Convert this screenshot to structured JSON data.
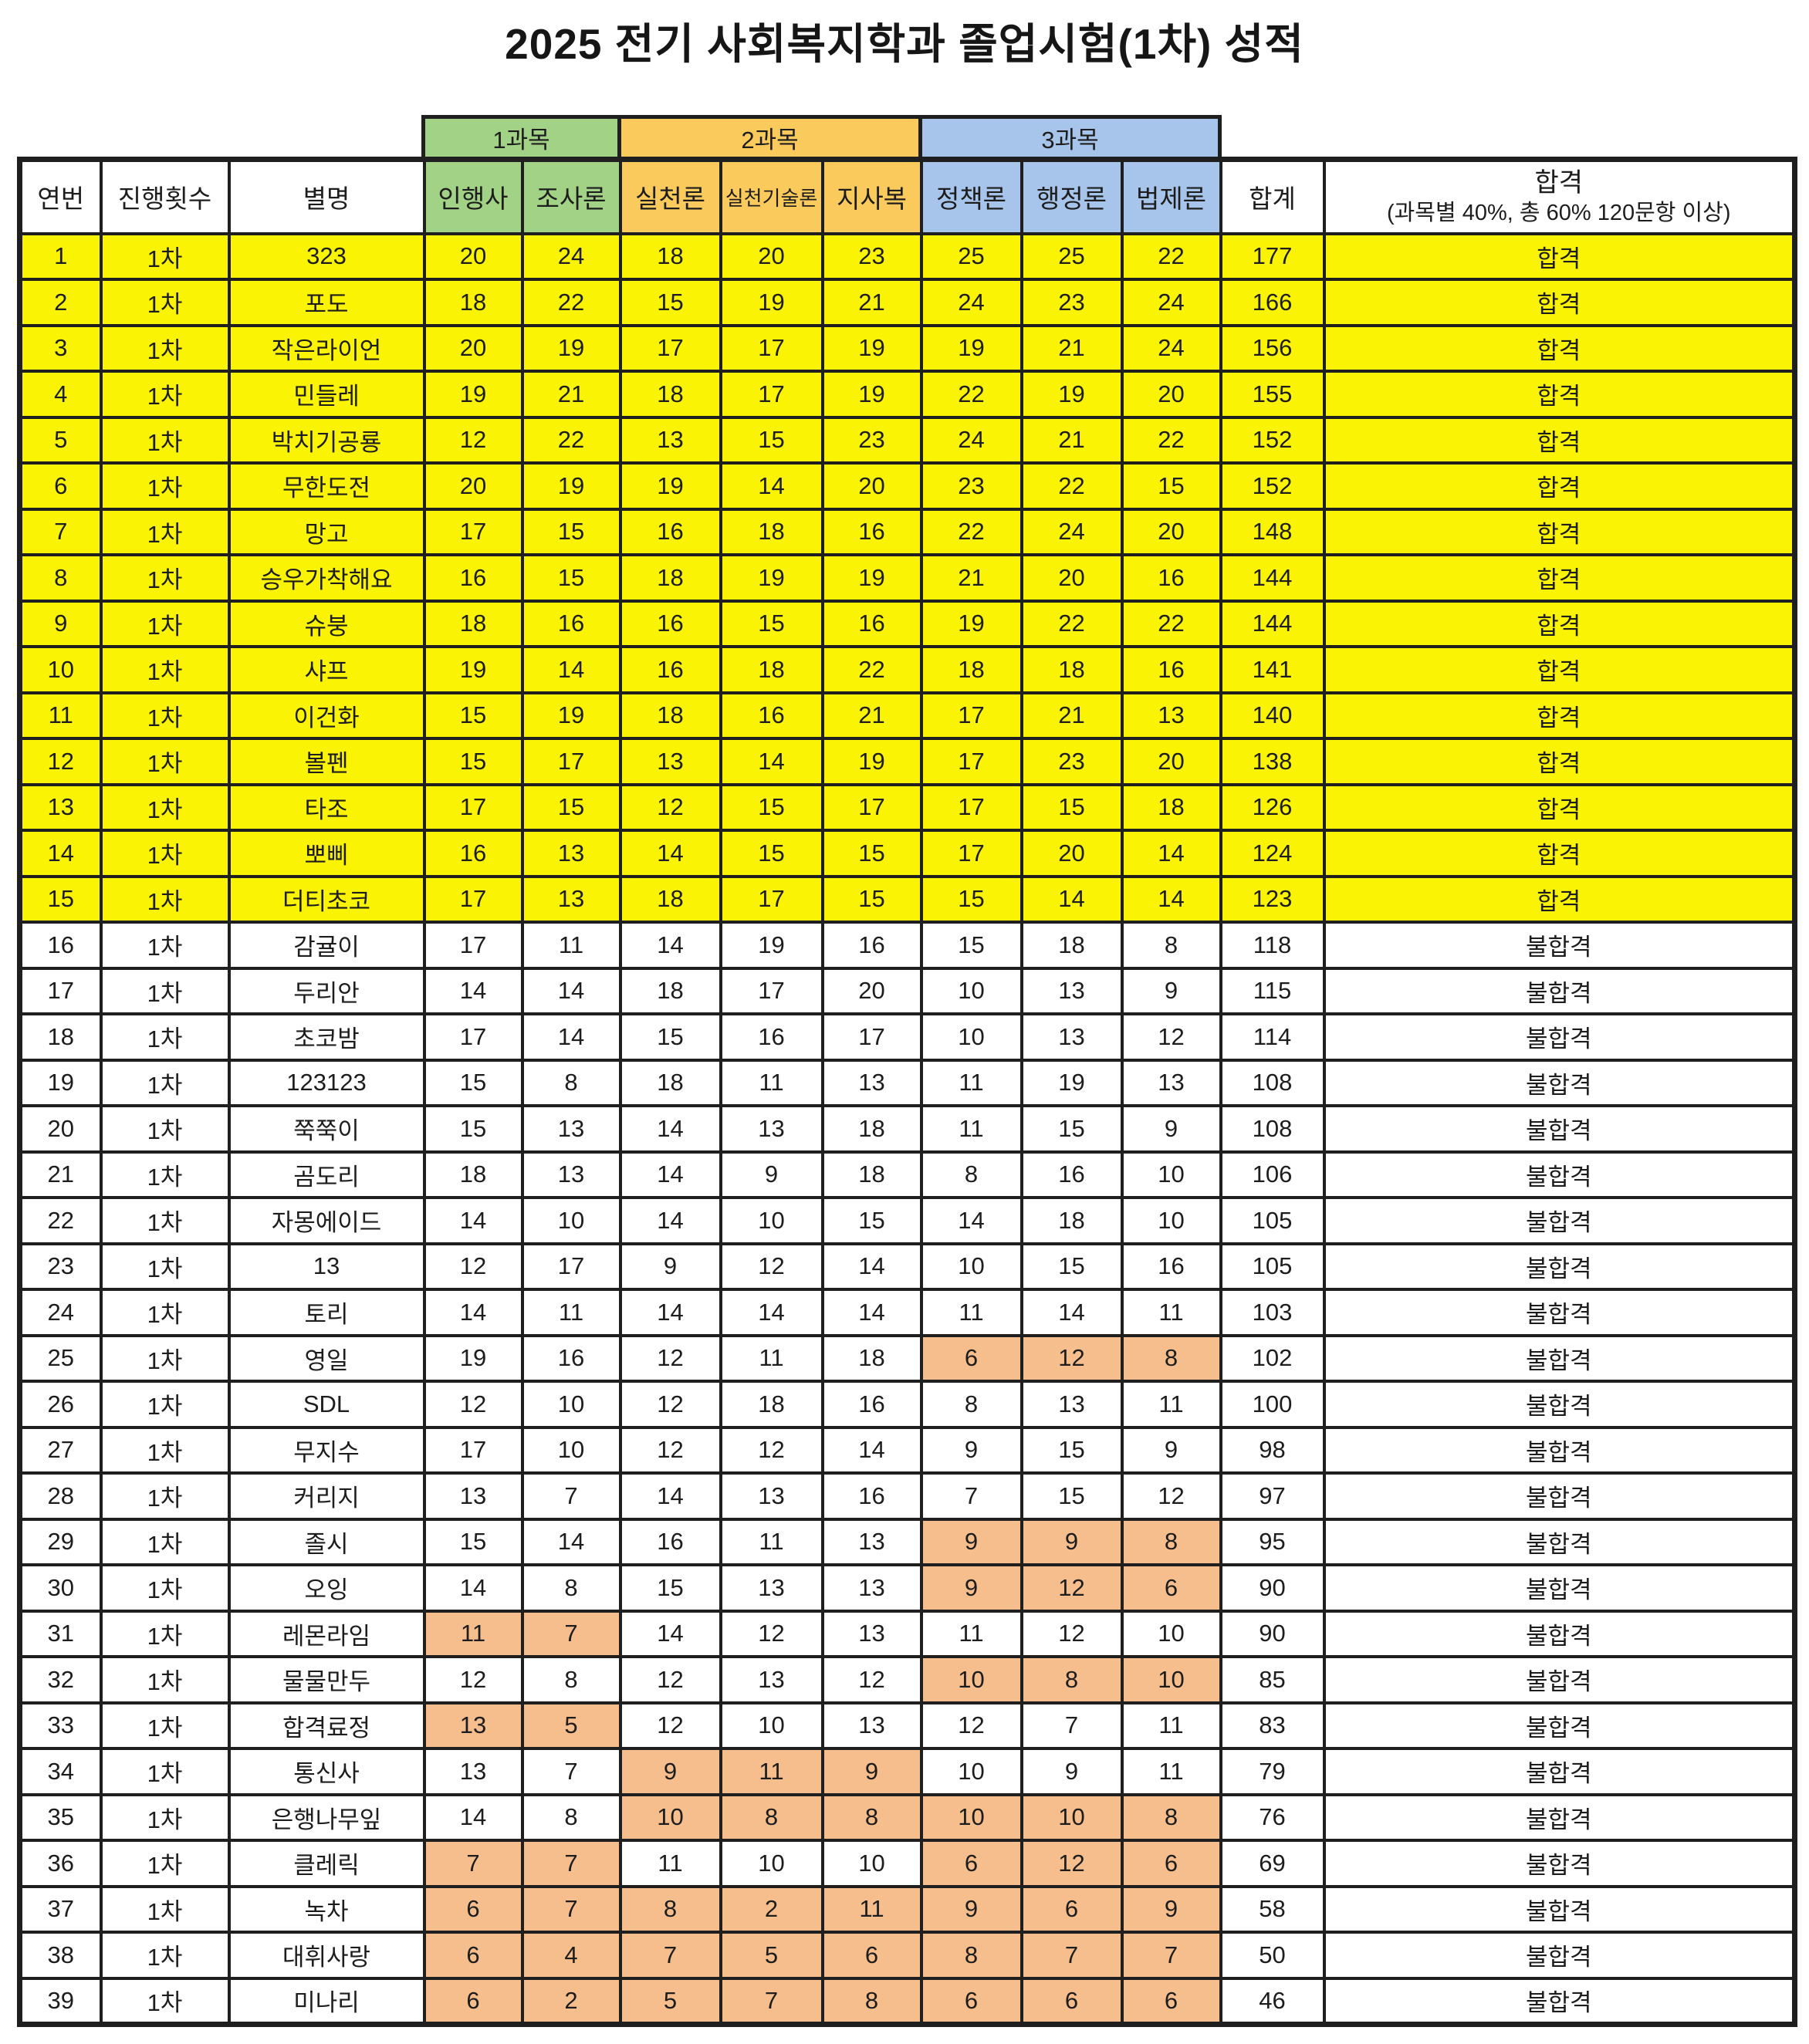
{
  "title": "2025 전기 사회복지학과 졸업시험(1차) 성적",
  "colors": {
    "pass_row_yellow": "#FAF303",
    "subject1_green": "#A2D286",
    "subject2_gold": "#FBCA5D",
    "subject3_blue": "#A7C5EA",
    "low_score_orange": "#F6BE8D",
    "grid_line": "#1f1f1f"
  },
  "table": {
    "group_headers": [
      {
        "label": "1과목",
        "span": 2
      },
      {
        "label": "2과목",
        "span": 3
      },
      {
        "label": "3과목",
        "span": 3
      }
    ],
    "columns": [
      "연번",
      "진행횟수",
      "별명",
      "인행사",
      "조사론",
      "실천론",
      "실천기술론",
      "지사복",
      "정책론",
      "행정론",
      "법제론",
      "합계"
    ],
    "pass_header": {
      "line1": "합격",
      "line2": "(과목별 40%, 총 60% 120문항 이상)"
    },
    "rows": [
      {
        "no": 1,
        "round": "1차",
        "name": "323",
        "scores": [
          20,
          24,
          18,
          20,
          23,
          25,
          25,
          22
        ],
        "total": 177,
        "result": "합격",
        "low": []
      },
      {
        "no": 2,
        "round": "1차",
        "name": "포도",
        "scores": [
          18,
          22,
          15,
          19,
          21,
          24,
          23,
          24
        ],
        "total": 166,
        "result": "합격",
        "low": []
      },
      {
        "no": 3,
        "round": "1차",
        "name": "작은라이언",
        "scores": [
          20,
          19,
          17,
          17,
          19,
          19,
          21,
          24
        ],
        "total": 156,
        "result": "합격",
        "low": []
      },
      {
        "no": 4,
        "round": "1차",
        "name": "민들레",
        "scores": [
          19,
          21,
          18,
          17,
          19,
          22,
          19,
          20
        ],
        "total": 155,
        "result": "합격",
        "low": []
      },
      {
        "no": 5,
        "round": "1차",
        "name": "박치기공룡",
        "scores": [
          12,
          22,
          13,
          15,
          23,
          24,
          21,
          22
        ],
        "total": 152,
        "result": "합격",
        "low": []
      },
      {
        "no": 6,
        "round": "1차",
        "name": "무한도전",
        "scores": [
          20,
          19,
          19,
          14,
          20,
          23,
          22,
          15
        ],
        "total": 152,
        "result": "합격",
        "low": []
      },
      {
        "no": 7,
        "round": "1차",
        "name": "망고",
        "scores": [
          17,
          15,
          16,
          18,
          16,
          22,
          24,
          20
        ],
        "total": 148,
        "result": "합격",
        "low": []
      },
      {
        "no": 8,
        "round": "1차",
        "name": "승우가착해요",
        "scores": [
          16,
          15,
          18,
          19,
          19,
          21,
          20,
          16
        ],
        "total": 144,
        "result": "합격",
        "low": []
      },
      {
        "no": 9,
        "round": "1차",
        "name": "슈붕",
        "scores": [
          18,
          16,
          16,
          15,
          16,
          19,
          22,
          22
        ],
        "total": 144,
        "result": "합격",
        "low": []
      },
      {
        "no": 10,
        "round": "1차",
        "name": "샤프",
        "scores": [
          19,
          14,
          16,
          18,
          22,
          18,
          18,
          16
        ],
        "total": 141,
        "result": "합격",
        "low": []
      },
      {
        "no": 11,
        "round": "1차",
        "name": "이건화",
        "scores": [
          15,
          19,
          18,
          16,
          21,
          17,
          21,
          13
        ],
        "total": 140,
        "result": "합격",
        "low": []
      },
      {
        "no": 12,
        "round": "1차",
        "name": "볼펜",
        "scores": [
          15,
          17,
          13,
          14,
          19,
          17,
          23,
          20
        ],
        "total": 138,
        "result": "합격",
        "low": []
      },
      {
        "no": 13,
        "round": "1차",
        "name": "타조",
        "scores": [
          17,
          15,
          12,
          15,
          17,
          17,
          15,
          18
        ],
        "total": 126,
        "result": "합격",
        "low": []
      },
      {
        "no": 14,
        "round": "1차",
        "name": "뽀삐",
        "scores": [
          16,
          13,
          14,
          15,
          15,
          17,
          20,
          14
        ],
        "total": 124,
        "result": "합격",
        "low": []
      },
      {
        "no": 15,
        "round": "1차",
        "name": "더티초코",
        "scores": [
          17,
          13,
          18,
          17,
          15,
          15,
          14,
          14
        ],
        "total": 123,
        "result": "합격",
        "low": []
      },
      {
        "no": 16,
        "round": "1차",
        "name": "감귤이",
        "scores": [
          17,
          11,
          14,
          19,
          16,
          15,
          18,
          8
        ],
        "total": 118,
        "result": "불합격",
        "low": []
      },
      {
        "no": 17,
        "round": "1차",
        "name": "두리안",
        "scores": [
          14,
          14,
          18,
          17,
          20,
          10,
          13,
          9
        ],
        "total": 115,
        "result": "불합격",
        "low": []
      },
      {
        "no": 18,
        "round": "1차",
        "name": "초코밤",
        "scores": [
          17,
          14,
          15,
          16,
          17,
          10,
          13,
          12
        ],
        "total": 114,
        "result": "불합격",
        "low": []
      },
      {
        "no": 19,
        "round": "1차",
        "name": "123123",
        "scores": [
          15,
          8,
          18,
          11,
          13,
          11,
          19,
          13
        ],
        "total": 108,
        "result": "불합격",
        "low": []
      },
      {
        "no": 20,
        "round": "1차",
        "name": "쭉쭉이",
        "scores": [
          15,
          13,
          14,
          13,
          18,
          11,
          15,
          9
        ],
        "total": 108,
        "result": "불합격",
        "low": []
      },
      {
        "no": 21,
        "round": "1차",
        "name": "곰도리",
        "scores": [
          18,
          13,
          14,
          9,
          18,
          8,
          16,
          10
        ],
        "total": 106,
        "result": "불합격",
        "low": []
      },
      {
        "no": 22,
        "round": "1차",
        "name": "자몽에이드",
        "scores": [
          14,
          10,
          14,
          10,
          15,
          14,
          18,
          10
        ],
        "total": 105,
        "result": "불합격",
        "low": []
      },
      {
        "no": 23,
        "round": "1차",
        "name": "13",
        "scores": [
          12,
          17,
          9,
          12,
          14,
          10,
          15,
          16
        ],
        "total": 105,
        "result": "불합격",
        "low": []
      },
      {
        "no": 24,
        "round": "1차",
        "name": "토리",
        "scores": [
          14,
          11,
          14,
          14,
          14,
          11,
          14,
          11
        ],
        "total": 103,
        "result": "불합격",
        "low": []
      },
      {
        "no": 25,
        "round": "1차",
        "name": "영일",
        "scores": [
          19,
          16,
          12,
          11,
          18,
          6,
          12,
          8
        ],
        "total": 102,
        "result": "불합격",
        "low": [
          5,
          6,
          7
        ]
      },
      {
        "no": 26,
        "round": "1차",
        "name": "SDL",
        "scores": [
          12,
          10,
          12,
          18,
          16,
          8,
          13,
          11
        ],
        "total": 100,
        "result": "불합격",
        "low": []
      },
      {
        "no": 27,
        "round": "1차",
        "name": "무지수",
        "scores": [
          17,
          10,
          12,
          12,
          14,
          9,
          15,
          9
        ],
        "total": 98,
        "result": "불합격",
        "low": []
      },
      {
        "no": 28,
        "round": "1차",
        "name": "커리지",
        "scores": [
          13,
          7,
          14,
          13,
          16,
          7,
          15,
          12
        ],
        "total": 97,
        "result": "불합격",
        "low": []
      },
      {
        "no": 29,
        "round": "1차",
        "name": "졸시",
        "scores": [
          15,
          14,
          16,
          11,
          13,
          9,
          9,
          8
        ],
        "total": 95,
        "result": "불합격",
        "low": [
          5,
          6,
          7
        ]
      },
      {
        "no": 30,
        "round": "1차",
        "name": "오잉",
        "scores": [
          14,
          8,
          15,
          13,
          13,
          9,
          12,
          6
        ],
        "total": 90,
        "result": "불합격",
        "low": [
          5,
          6,
          7
        ]
      },
      {
        "no": 31,
        "round": "1차",
        "name": "레몬라임",
        "scores": [
          11,
          7,
          14,
          12,
          13,
          11,
          12,
          10
        ],
        "total": 90,
        "result": "불합격",
        "low": [
          0,
          1
        ]
      },
      {
        "no": 32,
        "round": "1차",
        "name": "물물만두",
        "scores": [
          12,
          8,
          12,
          13,
          12,
          10,
          8,
          10
        ],
        "total": 85,
        "result": "불합격",
        "low": [
          5,
          6,
          7
        ]
      },
      {
        "no": 33,
        "round": "1차",
        "name": "합격료정",
        "scores": [
          13,
          5,
          12,
          10,
          13,
          12,
          7,
          11
        ],
        "total": 83,
        "result": "불합격",
        "low": [
          0,
          1
        ]
      },
      {
        "no": 34,
        "round": "1차",
        "name": "통신사",
        "scores": [
          13,
          7,
          9,
          11,
          9,
          10,
          9,
          11
        ],
        "total": 79,
        "result": "불합격",
        "low": [
          2,
          3,
          4
        ]
      },
      {
        "no": 35,
        "round": "1차",
        "name": "은행나무잎",
        "scores": [
          14,
          8,
          10,
          8,
          8,
          10,
          10,
          8
        ],
        "total": 76,
        "result": "불합격",
        "low": [
          2,
          3,
          4,
          5,
          6,
          7
        ]
      },
      {
        "no": 36,
        "round": "1차",
        "name": "클레릭",
        "scores": [
          7,
          7,
          11,
          10,
          10,
          6,
          12,
          6
        ],
        "total": 69,
        "result": "불합격",
        "low": [
          0,
          1,
          5,
          6,
          7
        ]
      },
      {
        "no": 37,
        "round": "1차",
        "name": "녹차",
        "scores": [
          6,
          7,
          8,
          2,
          11,
          9,
          6,
          9
        ],
        "total": 58,
        "result": "불합격",
        "low": [
          0,
          1,
          2,
          3,
          4,
          5,
          6,
          7
        ]
      },
      {
        "no": 38,
        "round": "1차",
        "name": "대휘사랑",
        "scores": [
          6,
          4,
          7,
          5,
          6,
          8,
          7,
          7
        ],
        "total": 50,
        "result": "불합격",
        "low": [
          0,
          1,
          2,
          3,
          4,
          5,
          6,
          7
        ]
      },
      {
        "no": 39,
        "round": "1차",
        "name": "미나리",
        "scores": [
          6,
          2,
          5,
          7,
          8,
          6,
          6,
          6
        ],
        "total": 46,
        "result": "불합격",
        "low": [
          0,
          1,
          2,
          3,
          4,
          5,
          6,
          7
        ]
      }
    ]
  }
}
